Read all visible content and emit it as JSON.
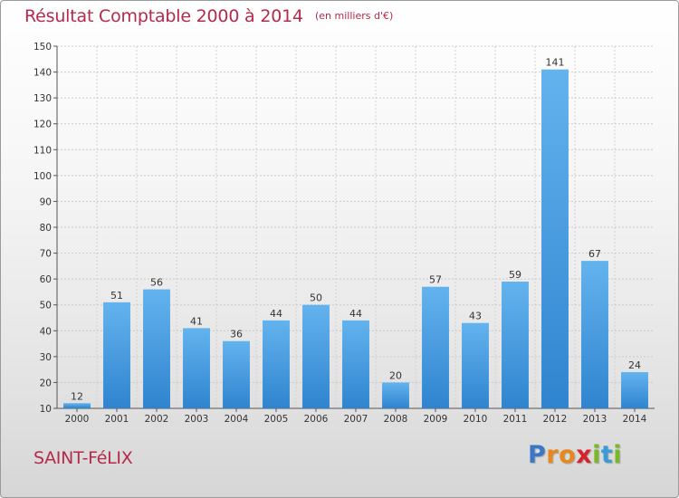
{
  "title": "Résultat Comptable 2000 à 2014",
  "subtitle": "(en milliers d'€)",
  "commune": "SAINT-FéLIX",
  "logo": {
    "text": "Proxiti",
    "letters": [
      {
        "char": "P",
        "color": "#3a78c6"
      },
      {
        "char": "r",
        "color": "#e8871e"
      },
      {
        "char": "o",
        "color": "#e8871e"
      },
      {
        "char": "x",
        "color": "#d8222a"
      },
      {
        "char": "i",
        "color": "#7ab828"
      },
      {
        "char": "t",
        "color": "#3a9bd8"
      },
      {
        "char": "i",
        "color": "#7ab828"
      }
    ]
  },
  "colors": {
    "title": "#b5294a",
    "bar_light": "#63b3ee",
    "bar_dark": "#2f84cf"
  },
  "chart_data": {
    "type": "bar",
    "title": "Résultat Comptable 2000 à 2014",
    "subtitle": "(en milliers d'€)",
    "xlabel": "",
    "ylabel": "",
    "categories": [
      "2000",
      "2001",
      "2002",
      "2003",
      "2004",
      "2005",
      "2006",
      "2007",
      "2008",
      "2009",
      "2010",
      "2011",
      "2012",
      "2013",
      "2014"
    ],
    "values": [
      12,
      51,
      56,
      41,
      36,
      44,
      50,
      44,
      20,
      57,
      43,
      59,
      141,
      67,
      24
    ],
    "ylim": [
      10,
      150
    ],
    "yticks": [
      10,
      20,
      30,
      40,
      50,
      60,
      70,
      80,
      90,
      100,
      110,
      120,
      130,
      140,
      150
    ],
    "grid": true,
    "legend": "none"
  }
}
